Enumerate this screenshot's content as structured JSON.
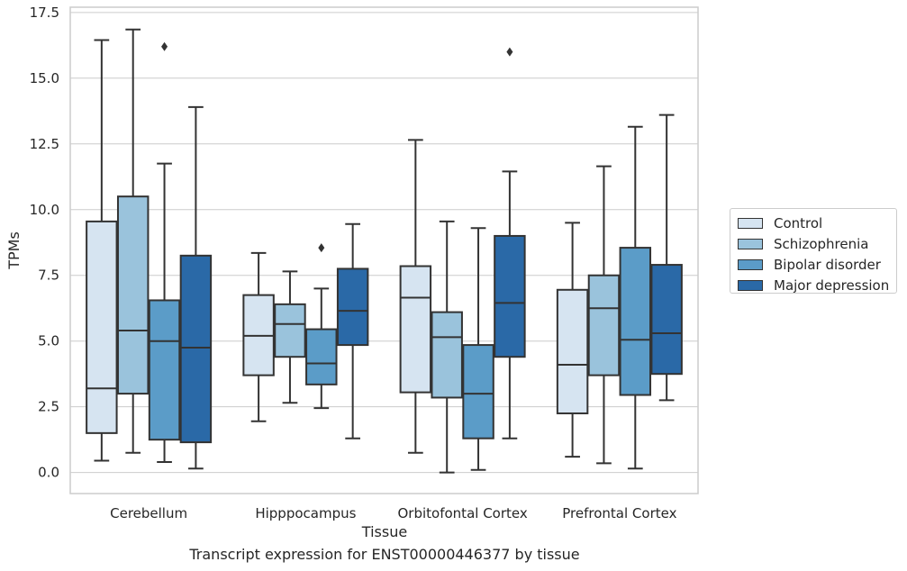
{
  "chart_data": {
    "type": "box",
    "xlabel": "Tissue",
    "ylabel": "TPMs",
    "ylim": [
      -0.8,
      17.7
    ],
    "yticks": [
      "0.0",
      "2.5",
      "5.0",
      "7.5",
      "10.0",
      "12.5",
      "15.0",
      "17.5"
    ],
    "categories": [
      "Cerebellum",
      "Hipppocampus",
      "Orbitofontal Cortex",
      "Prefrontal Cortex"
    ],
    "grid": "horizontal",
    "legend_position": "right",
    "series": [
      {
        "name": "Control",
        "color": "#d6e4f1",
        "boxes": [
          {
            "whisker_low": 0.45,
            "q1": 1.5,
            "median": 3.2,
            "q3": 9.55,
            "whisker_high": 16.45,
            "outliers": []
          },
          {
            "whisker_low": 1.95,
            "q1": 3.7,
            "median": 5.2,
            "q3": 6.75,
            "whisker_high": 8.35,
            "outliers": []
          },
          {
            "whisker_low": 0.75,
            "q1": 3.05,
            "median": 6.65,
            "q3": 7.85,
            "whisker_high": 12.65,
            "outliers": []
          },
          {
            "whisker_low": 0.6,
            "q1": 2.25,
            "median": 4.1,
            "q3": 6.95,
            "whisker_high": 9.5,
            "outliers": []
          }
        ]
      },
      {
        "name": "Schizophrenia",
        "color": "#9ac3dc",
        "boxes": [
          {
            "whisker_low": 0.75,
            "q1": 3.0,
            "median": 5.4,
            "q3": 10.5,
            "whisker_high": 16.85,
            "outliers": []
          },
          {
            "whisker_low": 2.65,
            "q1": 4.4,
            "median": 5.65,
            "q3": 6.4,
            "whisker_high": 7.65,
            "outliers": []
          },
          {
            "whisker_low": 0.0,
            "q1": 2.85,
            "median": 5.15,
            "q3": 6.1,
            "whisker_high": 9.55,
            "outliers": []
          },
          {
            "whisker_low": 0.35,
            "q1": 3.7,
            "median": 6.25,
            "q3": 7.5,
            "whisker_high": 11.65,
            "outliers": []
          }
        ]
      },
      {
        "name": "Bipolar disorder",
        "color": "#5b9cc8",
        "boxes": [
          {
            "whisker_low": 0.4,
            "q1": 1.25,
            "median": 5.0,
            "q3": 6.55,
            "whisker_high": 11.75,
            "outliers": [
              16.2
            ]
          },
          {
            "whisker_low": 2.45,
            "q1": 3.35,
            "median": 4.15,
            "q3": 5.45,
            "whisker_high": 7.0,
            "outliers": [
              8.55
            ]
          },
          {
            "whisker_low": 0.1,
            "q1": 1.3,
            "median": 3.0,
            "q3": 4.85,
            "whisker_high": 9.3,
            "outliers": []
          },
          {
            "whisker_low": 0.15,
            "q1": 2.95,
            "median": 5.05,
            "q3": 8.55,
            "whisker_high": 13.15,
            "outliers": []
          }
        ]
      },
      {
        "name": "Major depression",
        "color": "#2a69a7",
        "boxes": [
          {
            "whisker_low": 0.15,
            "q1": 1.15,
            "median": 4.75,
            "q3": 8.25,
            "whisker_high": 13.9,
            "outliers": []
          },
          {
            "whisker_low": 1.3,
            "q1": 4.85,
            "median": 6.15,
            "q3": 7.75,
            "whisker_high": 9.45,
            "outliers": []
          },
          {
            "whisker_low": 1.3,
            "q1": 4.4,
            "median": 6.45,
            "q3": 9.0,
            "whisker_high": 11.45,
            "outliers": [
              16.0
            ]
          },
          {
            "whisker_low": 2.75,
            "q1": 3.75,
            "median": 5.3,
            "q3": 7.9,
            "whisker_high": 13.6,
            "outliers": []
          }
        ]
      }
    ]
  },
  "caption": "Transcript expression for ENST00000446377 by tissue"
}
